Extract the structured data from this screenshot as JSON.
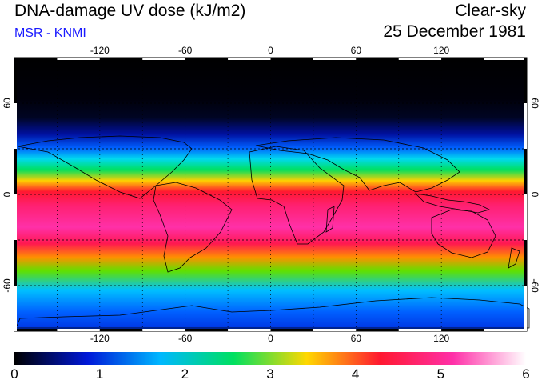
{
  "header": {
    "title": "DNA-damage UV dose (kJ/m2)",
    "subtitle": "MSR - KNMI",
    "mode": "Clear-sky",
    "date": "25 December 1981"
  },
  "axes": {
    "lon_labels": [
      "-120",
      "-60",
      "0",
      "60",
      "120"
    ],
    "lon_values": [
      -120,
      -60,
      0,
      60,
      120
    ],
    "lat_labels": [
      "60",
      "0",
      "-60"
    ],
    "lat_values": [
      60,
      0,
      -60
    ]
  },
  "colorbar": {
    "labels": [
      "0",
      "1",
      "2",
      "3",
      "4",
      "5",
      "6"
    ],
    "values": [
      0,
      1,
      2,
      3,
      4,
      5,
      6
    ],
    "stops": [
      "#000000",
      "#0018d8",
      "#00b8ff",
      "#00e060",
      "#ffd800",
      "#ff1830",
      "#ff30a8",
      "#ffffff"
    ]
  },
  "map_data": {
    "lon_range": [
      -180,
      180
    ],
    "lat_range": [
      -90,
      90
    ],
    "grid_lon": [
      -150,
      -120,
      -90,
      -60,
      -30,
      0,
      30,
      60,
      90,
      120,
      150
    ],
    "grid_lat": [
      -60,
      -30,
      0,
      30,
      60
    ]
  }
}
